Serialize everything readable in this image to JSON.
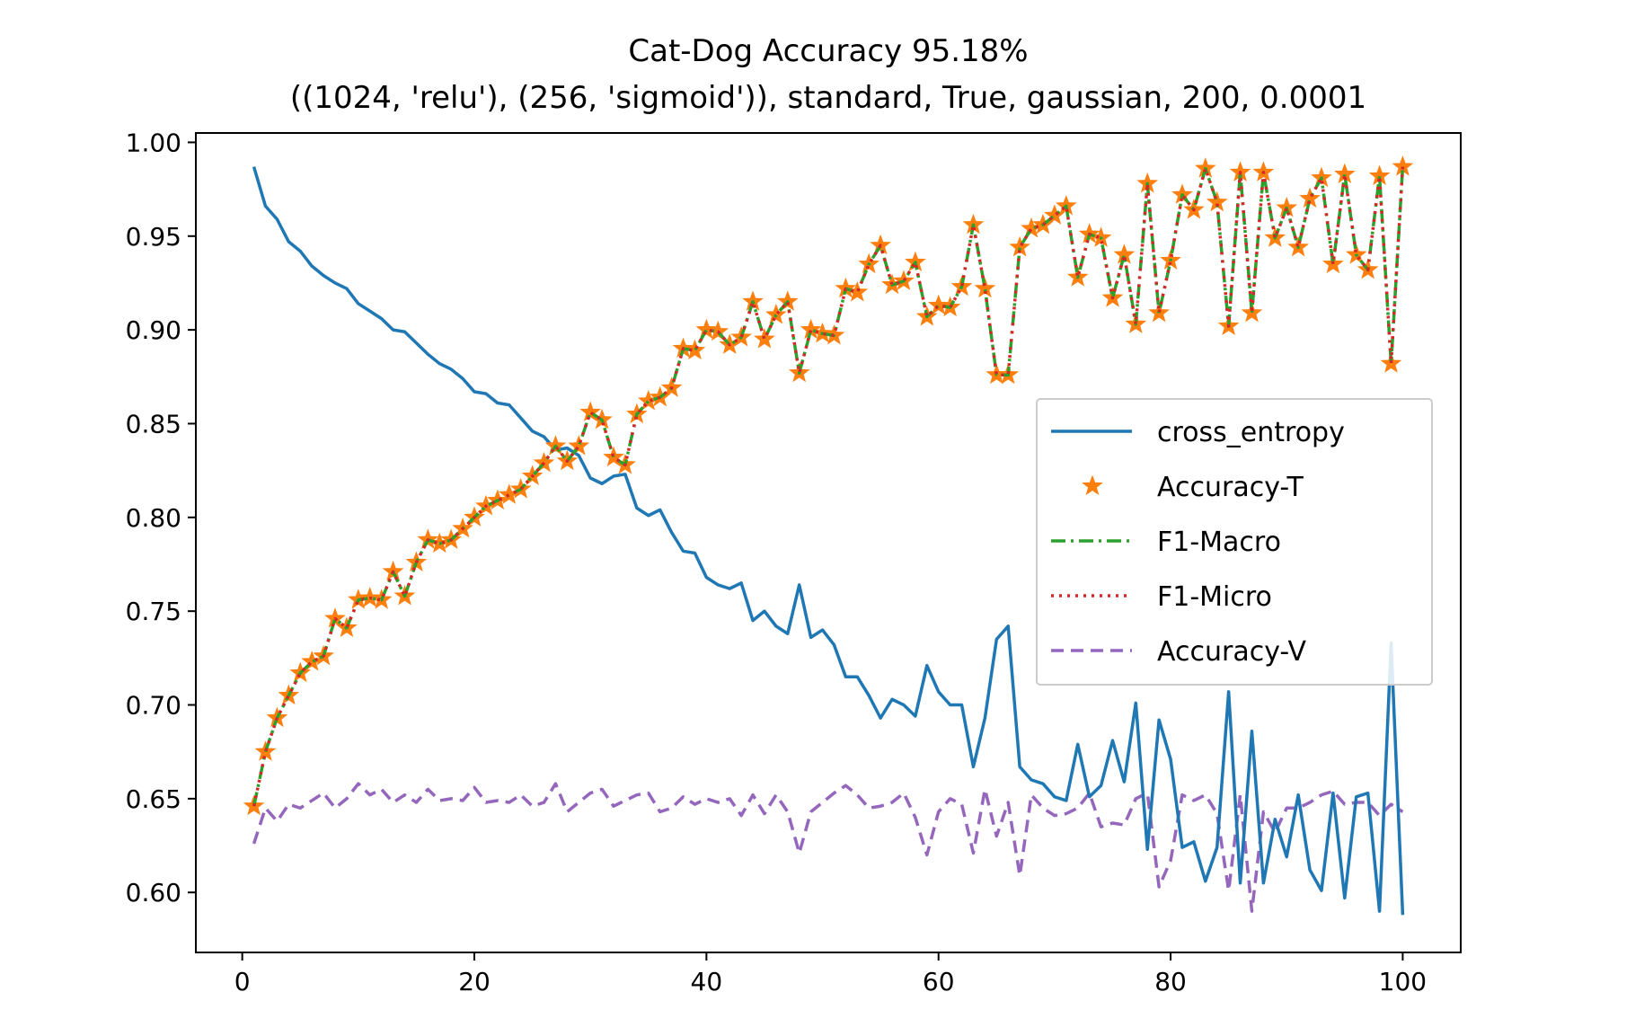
{
  "chart_data": {
    "type": "line",
    "title": "Cat-Dog Accuracy 95.18%",
    "subtitle": "((1024, 'relu'), (256, 'sigmoid')), standard, True, gaussian, 200, 0.0001",
    "xlabel": "",
    "ylabel": "",
    "xlim": [
      -4,
      105
    ],
    "ylim": [
      0.568,
      1.005
    ],
    "xticks": [
      "0",
      "20",
      "40",
      "60",
      "80",
      "100"
    ],
    "yticks": [
      "0.60",
      "0.65",
      "0.70",
      "0.75",
      "0.80",
      "0.85",
      "0.90",
      "0.95",
      "1.00"
    ],
    "grid": false,
    "legend_position": "center-right",
    "x": [
      1,
      2,
      3,
      4,
      5,
      6,
      7,
      8,
      9,
      10,
      11,
      12,
      13,
      14,
      15,
      16,
      17,
      18,
      19,
      20,
      21,
      22,
      23,
      24,
      25,
      26,
      27,
      28,
      29,
      30,
      31,
      32,
      33,
      34,
      35,
      36,
      37,
      38,
      39,
      40,
      41,
      42,
      43,
      44,
      45,
      46,
      47,
      48,
      49,
      50,
      51,
      52,
      53,
      54,
      55,
      56,
      57,
      58,
      59,
      60,
      61,
      62,
      63,
      64,
      65,
      66,
      67,
      68,
      69,
      70,
      71,
      72,
      73,
      74,
      75,
      76,
      77,
      78,
      79,
      80,
      81,
      82,
      83,
      84,
      85,
      86,
      87,
      88,
      89,
      90,
      91,
      92,
      93,
      94,
      95,
      96,
      97,
      98,
      99,
      100
    ],
    "series": [
      {
        "name": "cross_entropy",
        "color": "#1f77b4",
        "style": "solid",
        "values": [
          0.987,
          0.966,
          0.959,
          0.947,
          0.942,
          0.934,
          0.929,
          0.925,
          0.922,
          0.914,
          0.91,
          0.906,
          0.9,
          0.899,
          0.893,
          0.887,
          0.882,
          0.879,
          0.874,
          0.867,
          0.866,
          0.861,
          0.86,
          0.853,
          0.846,
          0.843,
          0.836,
          0.837,
          0.833,
          0.821,
          0.818,
          0.822,
          0.823,
          0.805,
          0.801,
          0.804,
          0.792,
          0.782,
          0.781,
          0.768,
          0.764,
          0.762,
          0.765,
          0.745,
          0.75,
          0.742,
          0.738,
          0.764,
          0.736,
          0.74,
          0.732,
          0.715,
          0.715,
          0.705,
          0.693,
          0.703,
          0.7,
          0.694,
          0.721,
          0.707,
          0.7,
          0.7,
          0.667,
          0.693,
          0.735,
          0.742,
          0.667,
          0.66,
          0.658,
          0.651,
          0.649,
          0.679,
          0.651,
          0.657,
          0.681,
          0.659,
          0.701,
          0.623,
          0.692,
          0.671,
          0.624,
          0.627,
          0.606,
          0.624,
          0.707,
          0.605,
          0.686,
          0.605,
          0.639,
          0.619,
          0.652,
          0.612,
          0.601,
          0.653,
          0.597,
          0.651,
          0.653,
          0.59,
          0.733,
          0.588
        ]
      },
      {
        "name": "Accuracy-T",
        "color": "#ff7f0e",
        "style": "star",
        "values": [
          0.646,
          0.675,
          0.693,
          0.705,
          0.717,
          0.723,
          0.726,
          0.746,
          0.741,
          0.756,
          0.757,
          0.756,
          0.771,
          0.758,
          0.776,
          0.788,
          0.786,
          0.788,
          0.794,
          0.8,
          0.806,
          0.809,
          0.812,
          0.815,
          0.822,
          0.829,
          0.838,
          0.83,
          0.838,
          0.856,
          0.852,
          0.832,
          0.828,
          0.855,
          0.862,
          0.864,
          0.869,
          0.89,
          0.889,
          0.9,
          0.899,
          0.892,
          0.896,
          0.915,
          0.895,
          0.908,
          0.915,
          0.877,
          0.9,
          0.898,
          0.897,
          0.922,
          0.92,
          0.935,
          0.945,
          0.924,
          0.926,
          0.936,
          0.907,
          0.913,
          0.912,
          0.923,
          0.956,
          0.922,
          0.876,
          0.876,
          0.944,
          0.954,
          0.956,
          0.961,
          0.966,
          0.928,
          0.951,
          0.949,
          0.917,
          0.94,
          0.903,
          0.978,
          0.909,
          0.937,
          0.972,
          0.964,
          0.986,
          0.968,
          0.902,
          0.984,
          0.909,
          0.984,
          0.949,
          0.965,
          0.944,
          0.97,
          0.981,
          0.935,
          0.983,
          0.94,
          0.932,
          0.982,
          0.882,
          0.987
        ]
      },
      {
        "name": "F1-Macro",
        "color": "#2ca02c",
        "style": "dashdot",
        "values": [
          0.646,
          0.675,
          0.693,
          0.705,
          0.717,
          0.723,
          0.726,
          0.746,
          0.741,
          0.756,
          0.757,
          0.756,
          0.771,
          0.758,
          0.776,
          0.788,
          0.786,
          0.788,
          0.794,
          0.8,
          0.806,
          0.809,
          0.812,
          0.815,
          0.822,
          0.829,
          0.838,
          0.83,
          0.838,
          0.856,
          0.852,
          0.832,
          0.828,
          0.855,
          0.862,
          0.864,
          0.869,
          0.89,
          0.889,
          0.9,
          0.899,
          0.892,
          0.896,
          0.915,
          0.895,
          0.908,
          0.915,
          0.877,
          0.9,
          0.898,
          0.897,
          0.922,
          0.92,
          0.935,
          0.945,
          0.924,
          0.926,
          0.936,
          0.907,
          0.913,
          0.912,
          0.923,
          0.956,
          0.922,
          0.876,
          0.876,
          0.944,
          0.954,
          0.956,
          0.961,
          0.966,
          0.928,
          0.951,
          0.949,
          0.917,
          0.94,
          0.903,
          0.978,
          0.909,
          0.937,
          0.972,
          0.964,
          0.986,
          0.968,
          0.902,
          0.984,
          0.909,
          0.984,
          0.949,
          0.965,
          0.944,
          0.97,
          0.981,
          0.935,
          0.983,
          0.94,
          0.932,
          0.982,
          0.882,
          0.987
        ]
      },
      {
        "name": "F1-Micro",
        "color": "#d62728",
        "style": "dotted",
        "values": [
          0.646,
          0.675,
          0.693,
          0.705,
          0.717,
          0.723,
          0.726,
          0.746,
          0.741,
          0.756,
          0.757,
          0.756,
          0.771,
          0.758,
          0.776,
          0.788,
          0.786,
          0.788,
          0.794,
          0.8,
          0.806,
          0.809,
          0.812,
          0.815,
          0.822,
          0.829,
          0.838,
          0.83,
          0.838,
          0.856,
          0.852,
          0.832,
          0.828,
          0.855,
          0.862,
          0.864,
          0.869,
          0.89,
          0.889,
          0.9,
          0.899,
          0.892,
          0.896,
          0.915,
          0.895,
          0.908,
          0.915,
          0.877,
          0.9,
          0.898,
          0.897,
          0.922,
          0.92,
          0.935,
          0.945,
          0.924,
          0.926,
          0.936,
          0.907,
          0.913,
          0.912,
          0.923,
          0.956,
          0.922,
          0.876,
          0.876,
          0.944,
          0.954,
          0.956,
          0.961,
          0.966,
          0.928,
          0.951,
          0.949,
          0.917,
          0.94,
          0.903,
          0.978,
          0.909,
          0.937,
          0.972,
          0.964,
          0.986,
          0.968,
          0.902,
          0.984,
          0.909,
          0.984,
          0.949,
          0.965,
          0.944,
          0.97,
          0.981,
          0.935,
          0.983,
          0.94,
          0.932,
          0.982,
          0.882,
          0.987
        ]
      },
      {
        "name": "Accuracy-V",
        "color": "#9467bd",
        "style": "dashed",
        "values": [
          0.626,
          0.645,
          0.638,
          0.647,
          0.645,
          0.649,
          0.653,
          0.645,
          0.65,
          0.658,
          0.652,
          0.655,
          0.648,
          0.652,
          0.648,
          0.655,
          0.649,
          0.65,
          0.649,
          0.656,
          0.648,
          0.649,
          0.648,
          0.652,
          0.646,
          0.648,
          0.658,
          0.643,
          0.648,
          0.653,
          0.655,
          0.646,
          0.649,
          0.652,
          0.653,
          0.643,
          0.645,
          0.651,
          0.647,
          0.65,
          0.648,
          0.65,
          0.641,
          0.652,
          0.642,
          0.652,
          0.643,
          0.621,
          0.643,
          0.648,
          0.653,
          0.657,
          0.652,
          0.645,
          0.646,
          0.648,
          0.653,
          0.64,
          0.62,
          0.643,
          0.65,
          0.647,
          0.621,
          0.655,
          0.63,
          0.648,
          0.609,
          0.652,
          0.645,
          0.641,
          0.642,
          0.645,
          0.653,
          0.635,
          0.637,
          0.636,
          0.65,
          0.653,
          0.603,
          0.617,
          0.652,
          0.649,
          0.652,
          0.642,
          0.601,
          0.652,
          0.59,
          0.643,
          0.632,
          0.645,
          0.645,
          0.648,
          0.652,
          0.654,
          0.647,
          0.648,
          0.648,
          0.641,
          0.647,
          0.643
        ]
      }
    ]
  }
}
